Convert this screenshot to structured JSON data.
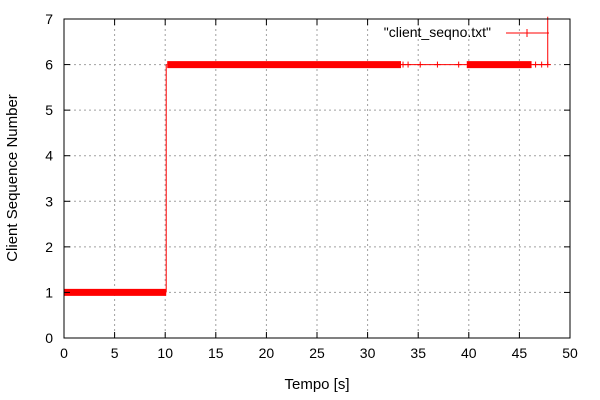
{
  "chart_data": {
    "type": "line",
    "title": "",
    "xlabel": "Tempo [s]",
    "ylabel": "Client Sequence Number",
    "xlim": [
      0,
      50
    ],
    "ylim": [
      0,
      7
    ],
    "xticks": [
      "0",
      "5",
      "10",
      "15",
      "20",
      "25",
      "30",
      "35",
      "40",
      "45",
      "50"
    ],
    "yticks": [
      "0",
      "1",
      "2",
      "3",
      "4",
      "5",
      "6",
      "7"
    ],
    "grid": true,
    "legend_position": "top-right",
    "series": [
      {
        "name": "\"client_seqno.txt\"",
        "color": "#ff0000",
        "style": "linespoints",
        "segments": [
          {
            "x_start": 0.0,
            "x_end": 10.1,
            "y": 1
          },
          {
            "x_start": 10.1,
            "x_end": 10.2,
            "y_from": 1,
            "y_to": 6
          },
          {
            "x_start": 10.2,
            "x_end": 33.3,
            "y": 6
          },
          {
            "x_start": 39.8,
            "x_end": 46.2,
            "y": 6
          },
          {
            "x_start": 47.8,
            "x_end": 47.9,
            "y_from": 6,
            "y_to": 7.2
          }
        ],
        "points": [
          {
            "x": 33.5,
            "y": 6
          },
          {
            "x": 34.0,
            "y": 6
          },
          {
            "x": 35.2,
            "y": 6
          },
          {
            "x": 36.9,
            "y": 6
          },
          {
            "x": 39.0,
            "y": 6
          },
          {
            "x": 46.6,
            "y": 6
          },
          {
            "x": 47.2,
            "y": 6
          },
          {
            "x": 47.8,
            "y": 6
          }
        ]
      }
    ]
  }
}
